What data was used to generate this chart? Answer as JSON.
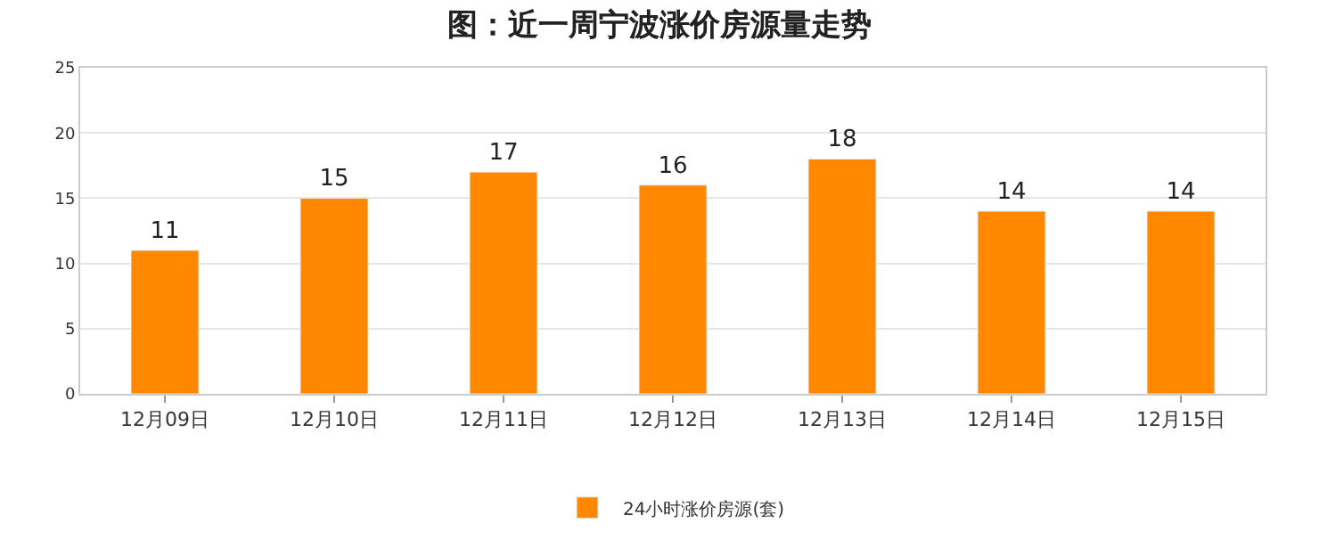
{
  "chart_data": {
    "type": "bar",
    "title": "图：近一周宁波涨价房源量走势",
    "categories": [
      "12月09日",
      "12月10日",
      "12月11日",
      "12月12日",
      "12月13日",
      "12月14日",
      "12月15日"
    ],
    "series": [
      {
        "name": "24小时涨价房源(套)",
        "color": "#ff8800",
        "values": [
          11,
          15,
          17,
          16,
          18,
          14,
          14
        ]
      }
    ],
    "ylim": [
      0,
      25
    ],
    "yticks": [
      0,
      5,
      10,
      15,
      20,
      25
    ],
    "grid": "y",
    "legend": "bottom",
    "data_labels": true
  }
}
